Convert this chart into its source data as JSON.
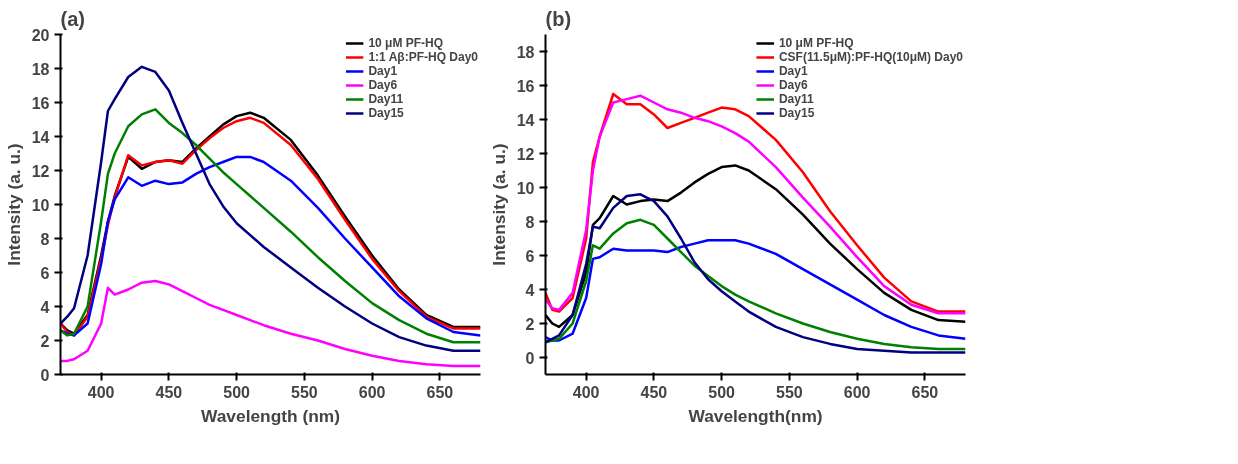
{
  "chart_data": [
    {
      "type": "line",
      "title": "(a)",
      "xlabel": "Wavelength (nm)",
      "ylabel": "Intensity (a. u.)",
      "x": [
        370,
        375,
        380,
        390,
        400,
        405,
        410,
        420,
        430,
        440,
        450,
        460,
        470,
        480,
        490,
        500,
        510,
        520,
        540,
        560,
        580,
        600,
        620,
        640,
        660,
        680
      ],
      "xlim": [
        370,
        680
      ],
      "xticks": [
        400,
        450,
        500,
        550,
        600,
        650
      ],
      "ylim": [
        0,
        20
      ],
      "yticks": [
        0,
        2,
        4,
        6,
        8,
        10,
        12,
        14,
        16,
        18,
        20
      ],
      "grid": false,
      "legend": "top right",
      "line_style": "solid",
      "marker": "none",
      "series": [
        {
          "name": "10 μM PF-HQ",
          "color": "#000000",
          "values": [
            3.0,
            2.6,
            2.4,
            3.5,
            7.0,
            9.0,
            10.5,
            12.8,
            12.1,
            12.5,
            12.6,
            12.5,
            13.3,
            14.0,
            14.7,
            15.2,
            15.4,
            15.1,
            13.8,
            11.7,
            9.3,
            7.0,
            5.0,
            3.5,
            2.8,
            2.8
          ]
        },
        {
          "name": "1:1 Aβ:PF-HQ Day0",
          "color": "#ff0000",
          "values": [
            3.0,
            2.5,
            2.3,
            3.4,
            6.8,
            8.8,
            10.4,
            12.9,
            12.3,
            12.5,
            12.6,
            12.4,
            13.2,
            13.9,
            14.5,
            14.9,
            15.1,
            14.8,
            13.5,
            11.5,
            9.1,
            6.8,
            4.9,
            3.4,
            2.7,
            2.7
          ]
        },
        {
          "name": "Day1",
          "color": "#0000ff",
          "values": [
            2.6,
            2.4,
            2.3,
            3.0,
            6.5,
            9.0,
            10.3,
            11.6,
            11.1,
            11.4,
            11.2,
            11.3,
            11.8,
            12.2,
            12.5,
            12.8,
            12.8,
            12.5,
            11.4,
            9.8,
            8.0,
            6.3,
            4.6,
            3.3,
            2.5,
            2.3
          ]
        },
        {
          "name": "Day6",
          "color": "#ff00ff",
          "values": [
            0.8,
            0.8,
            0.9,
            1.4,
            3.0,
            5.1,
            4.7,
            5.0,
            5.4,
            5.5,
            5.3,
            4.9,
            4.5,
            4.1,
            3.8,
            3.5,
            3.2,
            2.9,
            2.4,
            2.0,
            1.5,
            1.1,
            0.8,
            0.6,
            0.5,
            0.5
          ]
        },
        {
          "name": "Day11",
          "color": "#008000",
          "values": [
            2.6,
            2.3,
            2.4,
            4.0,
            9.0,
            11.8,
            13.0,
            14.6,
            15.3,
            15.6,
            14.8,
            14.2,
            13.5,
            12.7,
            11.9,
            11.2,
            10.5,
            9.8,
            8.4,
            6.9,
            5.5,
            4.2,
            3.2,
            2.4,
            1.9,
            1.9
          ]
        },
        {
          "name": "Day15",
          "color": "#000080",
          "values": [
            3.0,
            3.4,
            3.9,
            7.0,
            12.5,
            15.5,
            16.2,
            17.5,
            18.1,
            17.8,
            16.7,
            14.8,
            13.0,
            11.2,
            9.9,
            8.9,
            8.2,
            7.5,
            6.3,
            5.1,
            4.0,
            3.0,
            2.2,
            1.7,
            1.4,
            1.4
          ]
        }
      ]
    },
    {
      "type": "line",
      "title": "(b)",
      "xlabel": "Wavelength(nm)",
      "ylabel": "Intensity (a. u.)",
      "x": [
        370,
        375,
        380,
        390,
        400,
        405,
        410,
        420,
        430,
        440,
        450,
        460,
        470,
        480,
        490,
        500,
        510,
        520,
        540,
        560,
        580,
        600,
        620,
        640,
        660,
        680
      ],
      "xlim": [
        370,
        680
      ],
      "xticks": [
        400,
        450,
        500,
        550,
        600,
        650
      ],
      "ylim": [
        -1,
        19
      ],
      "yticks": [
        0,
        2,
        4,
        6,
        8,
        10,
        12,
        14,
        16,
        18
      ],
      "grid": false,
      "legend": "top right",
      "line_style": "solid",
      "marker": "none",
      "series": [
        {
          "name": "10 μM PF-HQ",
          "color": "#000000",
          "values": [
            2.5,
            2.0,
            1.8,
            2.5,
            5.0,
            7.8,
            8.2,
            9.5,
            9.0,
            9.2,
            9.3,
            9.2,
            9.7,
            10.3,
            10.8,
            11.2,
            11.3,
            11.0,
            9.9,
            8.4,
            6.7,
            5.2,
            3.8,
            2.8,
            2.2,
            2.1
          ]
        },
        {
          "name": "CSF(11.5μM):PF-HQ(10μM) Day0",
          "color": "#ff0000",
          "values": [
            3.8,
            2.8,
            2.7,
            3.5,
            7.0,
            11.5,
            13.0,
            15.5,
            14.9,
            14.9,
            14.3,
            13.5,
            13.8,
            14.1,
            14.4,
            14.7,
            14.6,
            14.2,
            12.8,
            10.9,
            8.6,
            6.6,
            4.7,
            3.3,
            2.7,
            2.7
          ]
        },
        {
          "name": "Day1",
          "color": "#0000ff",
          "values": [
            1.2,
            1.0,
            1.0,
            1.4,
            3.5,
            5.8,
            5.9,
            6.4,
            6.3,
            6.3,
            6.3,
            6.2,
            6.5,
            6.7,
            6.9,
            6.9,
            6.9,
            6.7,
            6.1,
            5.2,
            4.3,
            3.4,
            2.5,
            1.8,
            1.3,
            1.1
          ]
        },
        {
          "name": "Day6",
          "color": "#ff00ff",
          "values": [
            3.4,
            2.9,
            2.8,
            3.8,
            7.5,
            11.0,
            13.0,
            15.0,
            15.2,
            15.4,
            15.0,
            14.6,
            14.4,
            14.1,
            13.9,
            13.6,
            13.2,
            12.7,
            11.2,
            9.4,
            7.7,
            5.9,
            4.2,
            3.1,
            2.6,
            2.6
          ]
        },
        {
          "name": "Day11",
          "color": "#008000",
          "values": [
            0.9,
            1.0,
            1.1,
            2.0,
            4.5,
            6.6,
            6.4,
            7.3,
            7.9,
            8.1,
            7.8,
            7.0,
            6.2,
            5.4,
            4.8,
            4.2,
            3.7,
            3.3,
            2.6,
            2.0,
            1.5,
            1.1,
            0.8,
            0.6,
            0.5,
            0.5
          ]
        },
        {
          "name": "Day15",
          "color": "#000080",
          "values": [
            0.9,
            1.1,
            1.3,
            2.5,
            5.5,
            7.7,
            7.6,
            8.8,
            9.5,
            9.6,
            9.2,
            8.3,
            7.0,
            5.6,
            4.6,
            3.9,
            3.3,
            2.7,
            1.8,
            1.2,
            0.8,
            0.5,
            0.4,
            0.3,
            0.3,
            0.3
          ]
        }
      ]
    }
  ]
}
